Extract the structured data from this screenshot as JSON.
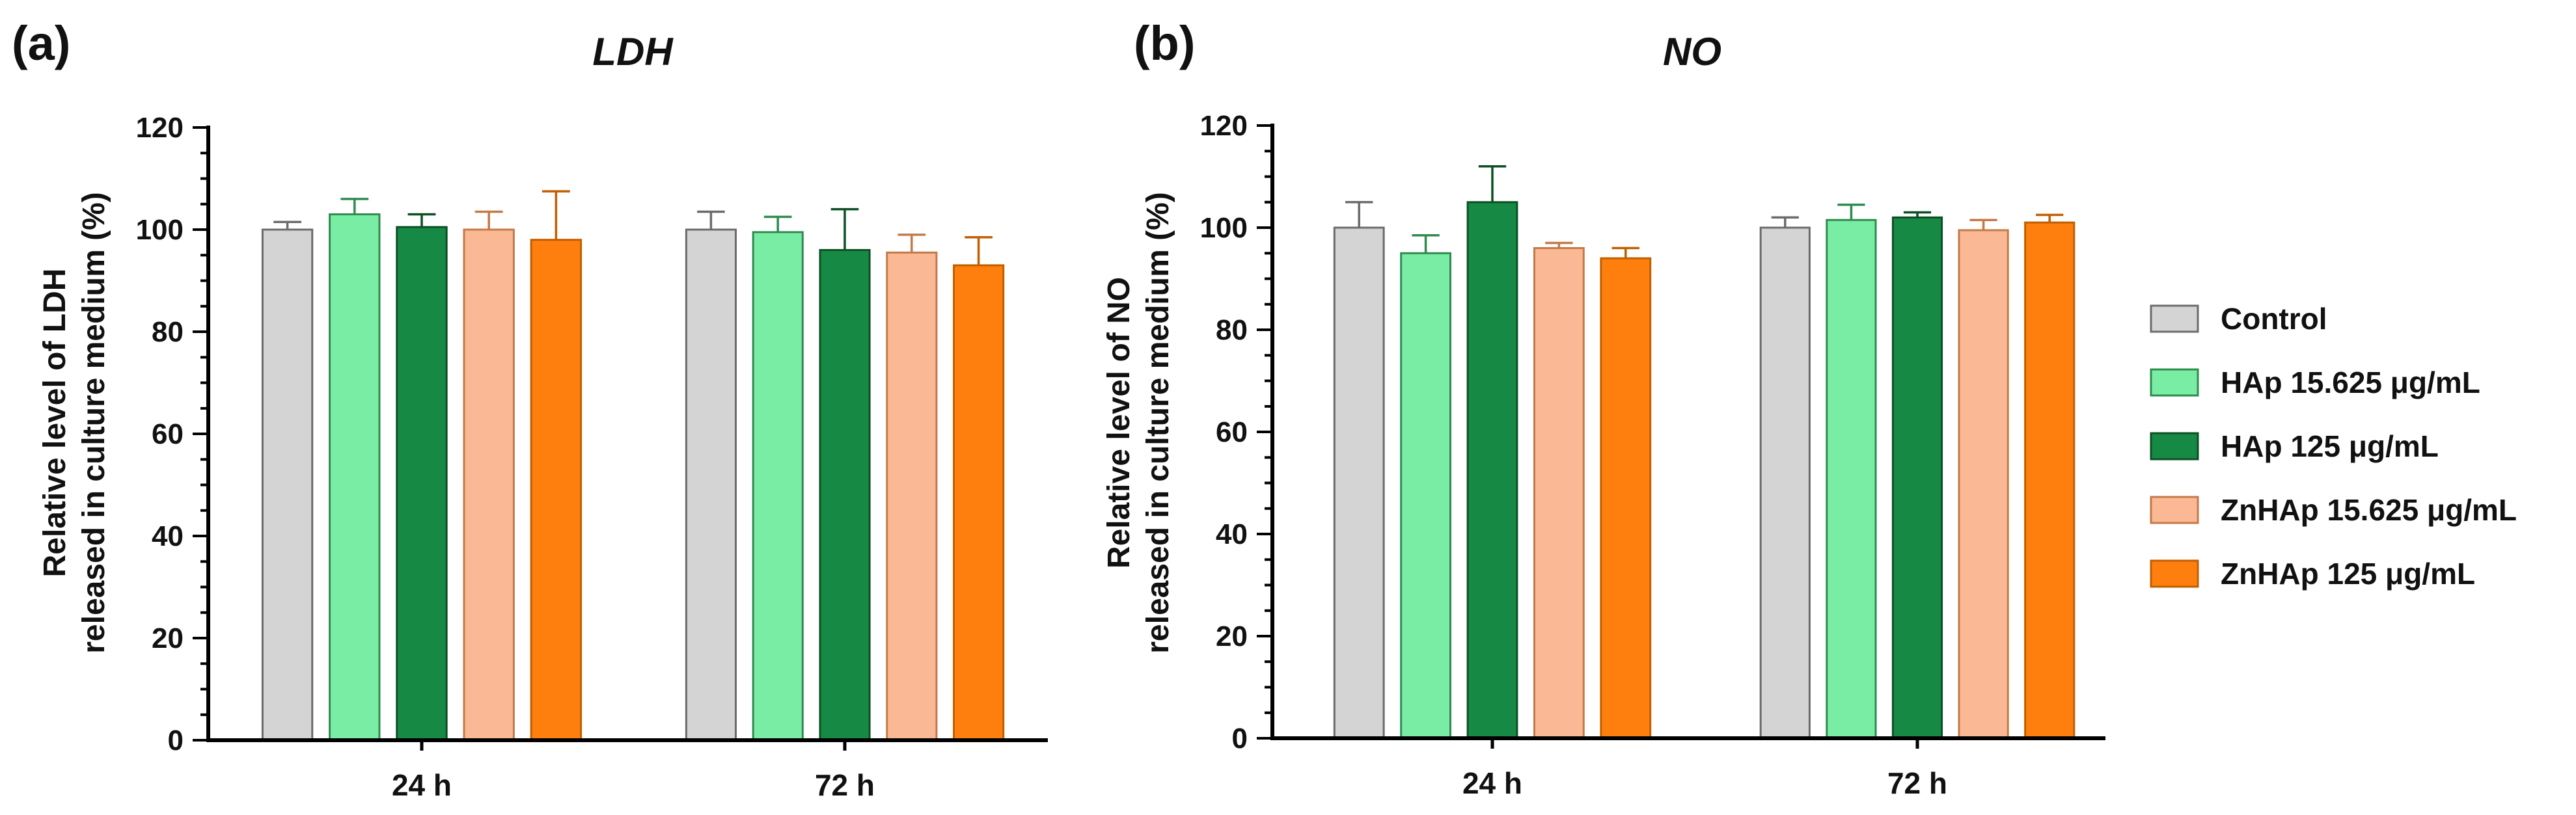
{
  "legend": {
    "entries": [
      {
        "label": "Control",
        "color": "#d4d4d4",
        "edge": "#6b6b6b"
      },
      {
        "label": "HAp 15.625 μg/mL",
        "color": "#7aeda5",
        "edge": "#2f8b4f"
      },
      {
        "label": "HAp 125 μg/mL",
        "color": "#168a45",
        "edge": "#0c4f24"
      },
      {
        "label": "ZnHAp 15.625 μg/mL",
        "color": "#fbb894",
        "edge": "#c47a47"
      },
      {
        "label": "ZnHAp 125 μg/mL",
        "color": "#ff7f0e",
        "edge": "#c15e00"
      }
    ]
  },
  "chart_data": [
    {
      "panel_label": "(a)",
      "type": "bar",
      "title": "LDH",
      "ylabel_line1": "Relative level of LDH",
      "ylabel_line2": "released in culture medium (%)",
      "xlabel": "",
      "ylim": [
        0,
        120
      ],
      "yticks": [
        0,
        20,
        40,
        60,
        80,
        100,
        120
      ],
      "categories": [
        "24 h",
        "72 h"
      ],
      "series": [
        {
          "name": "Control",
          "values": [
            100,
            100
          ],
          "errors": [
            1.5,
            3.5
          ]
        },
        {
          "name": "HAp 15.625 μg/mL",
          "values": [
            103,
            99.5
          ],
          "errors": [
            3,
            3
          ]
        },
        {
          "name": "HAp 125 μg/mL",
          "values": [
            100.5,
            96
          ],
          "errors": [
            2.5,
            8
          ]
        },
        {
          "name": "ZnHAp 15.625 μg/mL",
          "values": [
            100,
            95.5
          ],
          "errors": [
            3.5,
            3.5
          ]
        },
        {
          "name": "ZnHAp 125 μg/mL",
          "values": [
            98,
            93
          ],
          "errors": [
            9.5,
            5.5
          ]
        }
      ]
    },
    {
      "panel_label": "(b)",
      "type": "bar",
      "title": "NO",
      "ylabel_line1": "Relative level of NO",
      "ylabel_line2": "released in culture medium (%)",
      "xlabel": "",
      "ylim": [
        0,
        120
      ],
      "yticks": [
        0,
        20,
        40,
        60,
        80,
        100,
        120
      ],
      "categories": [
        "24 h",
        "72 h"
      ],
      "series": [
        {
          "name": "Control",
          "values": [
            100,
            100
          ],
          "errors": [
            5,
            2
          ]
        },
        {
          "name": "HAp 15.625 μg/mL",
          "values": [
            95,
            101.5
          ],
          "errors": [
            3.5,
            3
          ]
        },
        {
          "name": "HAp 125 μg/mL",
          "values": [
            105,
            102
          ],
          "errors": [
            7,
            1
          ]
        },
        {
          "name": "ZnHAp 15.625 μg/mL",
          "values": [
            96,
            99.5
          ],
          "errors": [
            1,
            2
          ]
        },
        {
          "name": "ZnHAp 125 μg/mL",
          "values": [
            94,
            101
          ],
          "errors": [
            2,
            1.5
          ]
        }
      ]
    }
  ]
}
